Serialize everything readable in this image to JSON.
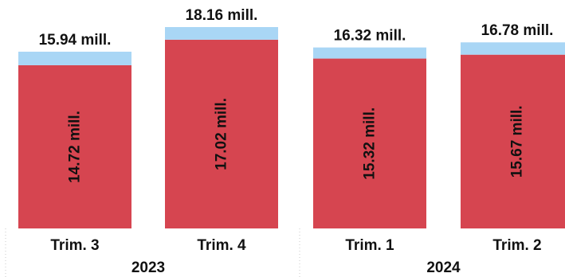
{
  "chart_data": {
    "type": "bar",
    "stacked": true,
    "unit": "mill.",
    "categories": [
      "Trim. 3",
      "Trim. 4",
      "Trim. 1",
      "Trim. 2"
    ],
    "groups": [
      {
        "label": "2023",
        "categories": [
          "Trim. 3",
          "Trim. 4"
        ]
      },
      {
        "label": "2024",
        "categories": [
          "Trim. 1",
          "Trim. 2"
        ]
      }
    ],
    "series": [
      {
        "color": "#d64550",
        "values": [
          14.72,
          17.02,
          15.32,
          15.67
        ],
        "labels": [
          "14.72 mill.",
          "17.02 mill.",
          "15.32 mill.",
          "15.67 mill."
        ]
      },
      {
        "color": "#a9d6f5",
        "values": [
          1.22,
          1.14,
          1.0,
          1.11
        ]
      }
    ],
    "totals": [
      15.94,
      18.16,
      16.32,
      16.78
    ],
    "total_labels": [
      "15.94 mill.",
      "18.16 mill.",
      "16.32 mill.",
      "16.78 mill."
    ],
    "ylim": [
      0,
      18.16
    ],
    "grid": false,
    "legend": "none"
  }
}
